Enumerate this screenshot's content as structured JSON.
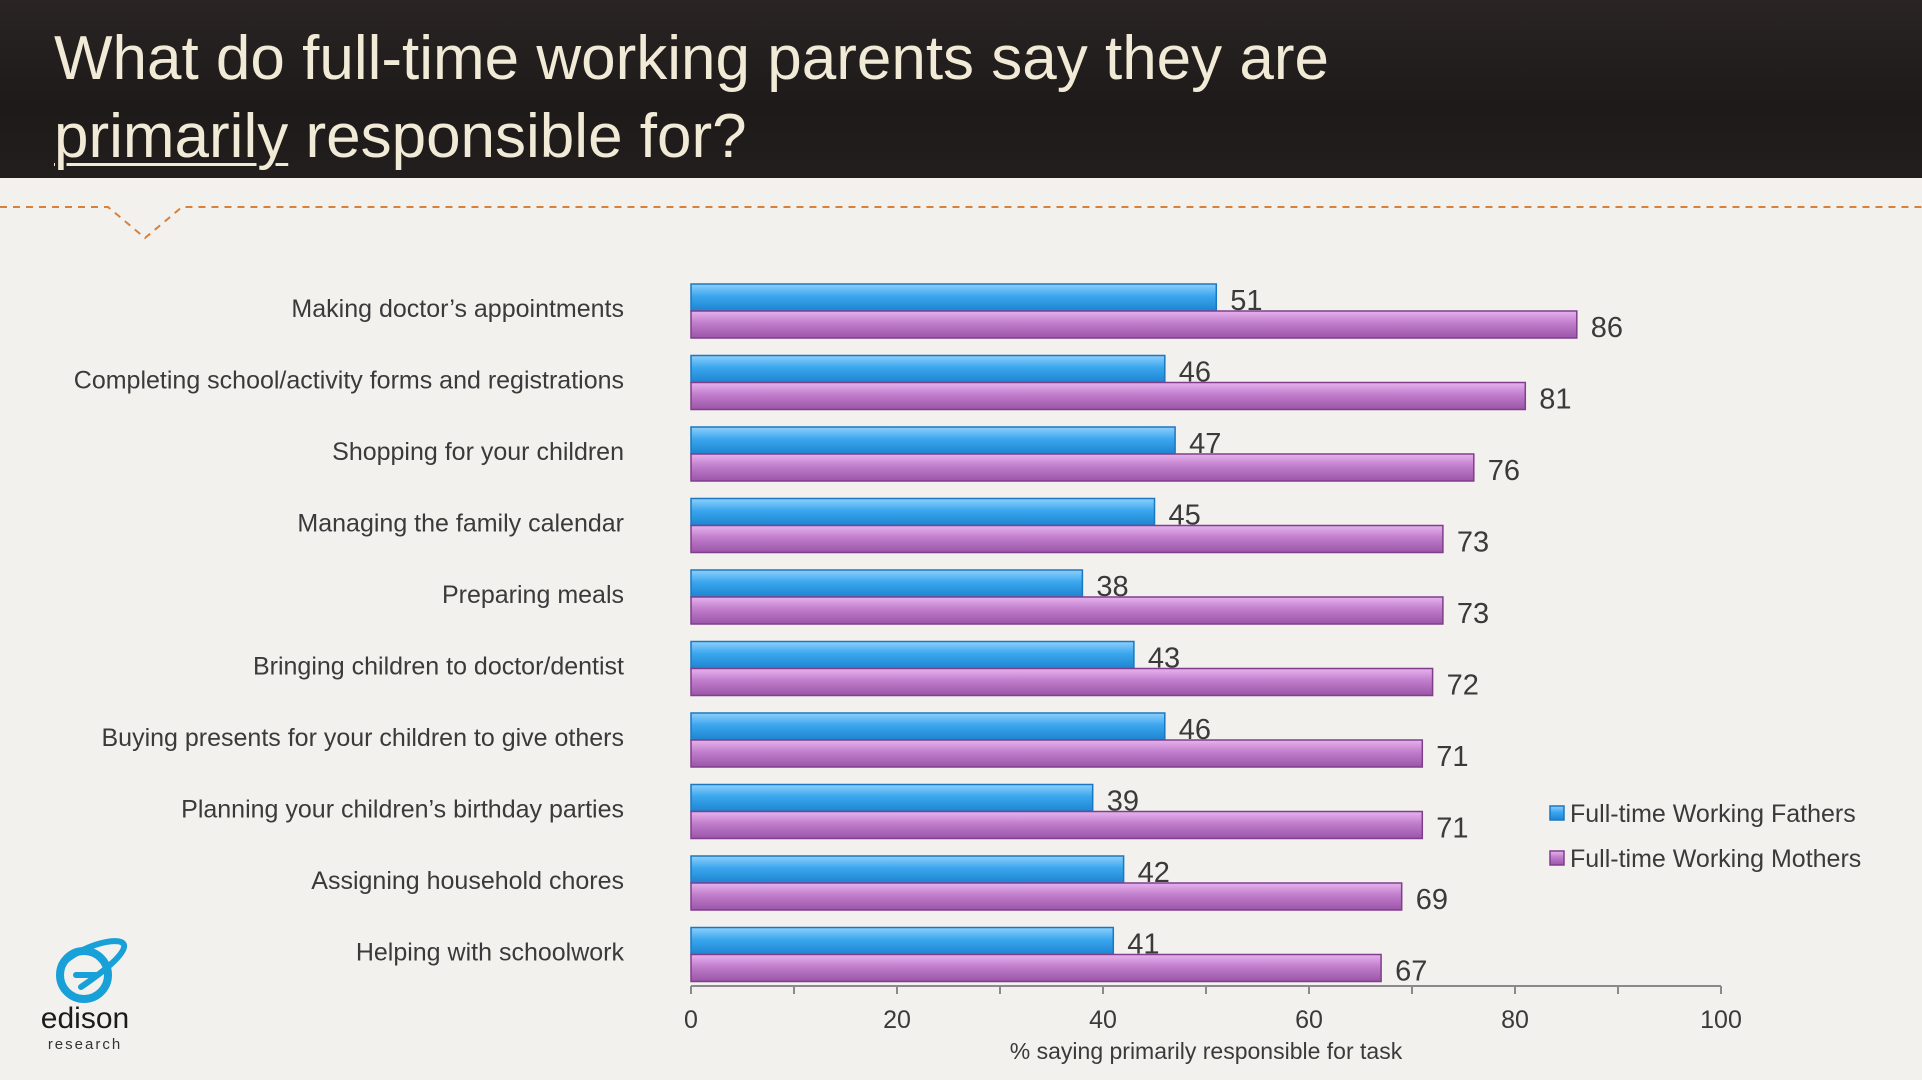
{
  "slide": {
    "title_line1": "What do full-time working parents say they are",
    "title_underlined": "primarily",
    "title_rest": " responsible for?"
  },
  "logo": {
    "word": "edison",
    "sub": "research"
  },
  "colors": {
    "fathers": "#3aa6ee",
    "mothers": "#b26bbf",
    "title_text": "#f0ead6",
    "divider": "#d9803a"
  },
  "chart_data": {
    "type": "bar",
    "orientation": "horizontal",
    "categories": [
      "Making doctor’s appointments",
      "Completing school/activity forms and registrations",
      "Shopping for your children",
      "Managing the family calendar",
      "Preparing meals",
      "Bringing children to doctor/dentist",
      "Buying presents for your children to give others",
      "Planning your children’s birthday parties",
      "Assigning household chores",
      "Helping with schoolwork"
    ],
    "series": [
      {
        "name": "Full-time Working Fathers",
        "values": [
          51,
          46,
          47,
          45,
          38,
          43,
          46,
          39,
          42,
          41
        ]
      },
      {
        "name": "Full-time Working Mothers",
        "values": [
          86,
          81,
          76,
          73,
          73,
          72,
          71,
          71,
          69,
          67
        ]
      }
    ],
    "xlabel": "% saying primarily responsible for task",
    "xlim": [
      0,
      100
    ],
    "xticks": [
      "0",
      "20",
      "40",
      "60",
      "80",
      "100"
    ],
    "data_labels": true,
    "legend_position": "right",
    "grid": false
  }
}
